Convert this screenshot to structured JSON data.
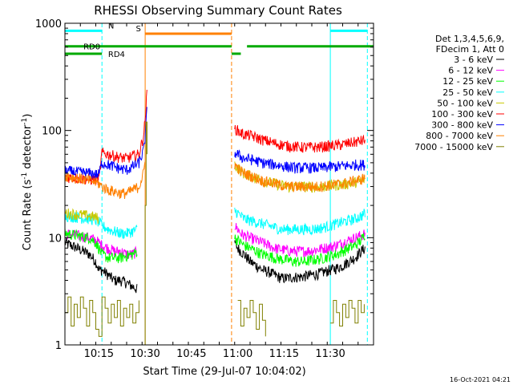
{
  "chart_data": {
    "type": "line",
    "title": "RHESSI Observing Summary Count Rates",
    "xlabel": "Start Time (29-Jul-07 10:04:02)",
    "ylabel_parts": [
      "Count Rate (s",
      "-1",
      " detector",
      "-1",
      ")"
    ],
    "yscale": "log",
    "ylim": [
      1,
      1000
    ],
    "xlim_minutes": [
      0,
      100
    ],
    "x_ticks": [
      {
        "min": 11,
        "label": "10:15"
      },
      {
        "min": 26,
        "label": "10:30"
      },
      {
        "min": 41,
        "label": "10:45"
      },
      {
        "min": 56,
        "label": "11:00"
      },
      {
        "min": 71,
        "label": "11:15"
      },
      {
        "min": 86,
        "label": "11:30"
      }
    ],
    "y_ticks": [
      {
        "value": 1,
        "label": "1"
      },
      {
        "value": 10,
        "label": "10"
      },
      {
        "value": 100,
        "label": "100"
      },
      {
        "value": 1000,
        "label": "1000"
      }
    ],
    "legend_placement": "top-right",
    "legend_header": [
      "Det 1,3,4,5,6,9,",
      "FDecim 1, Att 0"
    ],
    "series": [
      {
        "name": "3 - 6 keV",
        "color": "#000000",
        "segments": [
          {
            "x": [
              0,
              4,
              8,
              10,
              11,
              12,
              14,
              16,
              18,
              20,
              22,
              23.5
            ],
            "y": [
              9,
              8,
              7,
              6,
              5,
              5,
              4.5,
              4,
              4,
              3.8,
              3.5,
              3.3
            ]
          },
          {
            "x": [
              55,
              56,
              57,
              58,
              59,
              60,
              62,
              64,
              66,
              68,
              70,
              72,
              74,
              76,
              78,
              80,
              82,
              84,
              86,
              88,
              90,
              92,
              94,
              96,
              97.3
            ],
            "y": [
              9,
              8,
              7.5,
              7,
              6.5,
              6,
              5.5,
              5,
              4.8,
              4.5,
              4.2,
              4.2,
              4.3,
              4.3,
              4.4,
              4.5,
              4.6,
              4.8,
              5,
              5.2,
              5.5,
              6,
              6.5,
              7.5,
              8
            ]
          }
        ]
      },
      {
        "name": "6 - 12 keV",
        "color": "#ff00ff",
        "segments": [
          {
            "x": [
              0,
              4,
              8,
              10,
              11,
              12,
              14,
              16,
              18,
              20,
              22,
              23.5
            ],
            "y": [
              11,
              10.5,
              10,
              9.5,
              9,
              8.5,
              8,
              7.5,
              7.5,
              7,
              7,
              7.5
            ]
          },
          {
            "x": [
              55,
              56,
              57,
              58,
              60,
              62,
              64,
              66,
              68,
              70,
              72,
              74,
              76,
              78,
              80,
              82,
              84,
              86,
              88,
              90,
              92,
              94,
              96,
              97.3
            ],
            "y": [
              13,
              12,
              11,
              10.5,
              10,
              9.5,
              9,
              8.5,
              8,
              7.8,
              7.6,
              7.5,
              7.5,
              7.5,
              7.6,
              7.8,
              8,
              8.2,
              8.5,
              9,
              9.5,
              10,
              10.5,
              11
            ]
          }
        ]
      },
      {
        "name": "12 - 25 keV",
        "color": "#00ff00",
        "segments": [
          {
            "x": [
              0,
              4,
              8,
              10,
              11,
              12,
              14,
              16,
              18,
              20,
              22,
              23.5
            ],
            "y": [
              11,
              10.5,
              10,
              9,
              8,
              7,
              6.5,
              6.5,
              6.5,
              6.8,
              7,
              7.5
            ]
          },
          {
            "x": [
              55,
              56,
              57,
              58,
              60,
              62,
              64,
              66,
              68,
              70,
              72,
              74,
              76,
              78,
              80,
              82,
              84,
              86,
              88,
              90,
              92,
              94,
              96,
              97.3
            ],
            "y": [
              10,
              9.5,
              9,
              8.5,
              8,
              7.5,
              7,
              6.8,
              6.5,
              6.3,
              6.2,
              6,
              6,
              6,
              6.2,
              6.3,
              6.5,
              6.8,
              7,
              7.5,
              8,
              8.5,
              9.5,
              11
            ]
          }
        ]
      },
      {
        "name": "25 - 50 keV",
        "color": "#00ffff",
        "segments": [
          {
            "x": [
              0,
              4,
              8,
              10,
              11,
              12,
              14,
              16,
              18,
              20,
              22,
              23.5
            ],
            "y": [
              16,
              15.5,
              15,
              14.5,
              14,
              13,
              12,
              11.5,
              11,
              11,
              11.5,
              12
            ]
          },
          {
            "x": [
              55,
              56,
              57,
              58,
              60,
              62,
              64,
              66,
              68,
              70,
              72,
              74,
              76,
              78,
              80,
              82,
              84,
              86,
              88,
              90,
              92,
              94,
              96,
              97.3
            ],
            "y": [
              18,
              17,
              16,
              15,
              14.5,
              14,
              13.5,
              13,
              12.5,
              12,
              12,
              12,
              12,
              12,
              12,
              12.2,
              12.5,
              13,
              13.5,
              14,
              14.5,
              15,
              16,
              17
            ]
          }
        ]
      },
      {
        "name": "50 - 100 keV",
        "color": "#c8c800",
        "segments": [
          {
            "x": [
              0,
              4,
              8,
              10,
              11
            ],
            "y": [
              17,
              16.5,
              16,
              15.5,
              15
            ]
          },
          {
            "x": [
              55,
              56,
              57,
              58,
              60,
              62,
              64,
              66,
              68,
              70,
              72,
              74,
              76,
              78,
              80,
              82,
              84,
              86,
              88,
              90,
              92,
              94,
              96,
              97.3
            ],
            "y": [
              48,
              45,
              42,
              40,
              38,
              36,
              34,
              33,
              32,
              31,
              30,
              30,
              30,
              30,
              30,
              30,
              30,
              30.5,
              31,
              31.5,
              32,
              33,
              34,
              35
            ]
          }
        ]
      },
      {
        "name": "100 - 300 keV",
        "color": "#ff0000",
        "segments": [
          {
            "x": [
              0,
              4,
              8,
              10,
              11,
              12,
              14,
              16,
              18,
              20,
              22,
              24,
              25.5,
              26.2,
              26.6
            ],
            "y": [
              37,
              36,
              35,
              35,
              35,
              62,
              60,
              58,
              56,
              55,
              58,
              60,
              90,
              150,
              230
            ]
          },
          {
            "x": [
              55,
              56,
              57,
              58,
              60,
              62,
              64,
              66,
              68,
              70,
              72,
              74,
              76,
              78,
              80,
              82,
              84,
              86,
              88,
              90,
              92,
              94,
              96,
              97.3
            ],
            "y": [
              105,
              100,
              95,
              92,
              90,
              86,
              82,
              79,
              76,
              74,
              72,
              71,
              70,
              70,
              70,
              70,
              71,
              72,
              73,
              74,
              76,
              78,
              80,
              82
            ]
          }
        ]
      },
      {
        "name": "300 - 800 keV",
        "color": "#0000ff",
        "segments": [
          {
            "x": [
              0,
              4,
              8,
              10,
              11,
              12,
              14,
              16,
              18,
              20,
              22,
              24,
              25.5,
              26.2,
              26.6
            ],
            "y": [
              42,
              41,
              40,
              39,
              39,
              50,
              48,
              46,
              44,
              43,
              46,
              50,
              65,
              100,
              160
            ]
          },
          {
            "x": [
              55,
              56,
              57,
              58,
              60,
              62,
              64,
              66,
              68,
              70,
              72,
              74,
              76,
              78,
              80,
              82,
              84,
              86,
              88,
              90,
              92,
              94,
              96,
              97.3
            ],
            "y": [
              62,
              60,
              57,
              55,
              54,
              52,
              50,
              49,
              48,
              47,
              46,
              45,
              45,
              45,
              45,
              45,
              45,
              46,
              46,
              47,
              47,
              48,
              48,
              48
            ]
          }
        ]
      },
      {
        "name": "800 - 7000 keV",
        "color": "#ff8000",
        "segments": [
          {
            "x": [
              0,
              4,
              8,
              10,
              11,
              12,
              14,
              16,
              18,
              20,
              22,
              24,
              25.5,
              26.2
            ],
            "y": [
              38,
              36,
              34,
              33,
              32,
              30,
              28,
              27,
              26,
              26,
              28,
              30,
              40,
              60
            ]
          },
          {
            "x": [
              55,
              56,
              57,
              58,
              60,
              62,
              64,
              66,
              68,
              70,
              72,
              74,
              76,
              78,
              80,
              82,
              84,
              86,
              88,
              90,
              92,
              94,
              96,
              97.3
            ],
            "y": [
              48,
              45,
              42,
              40,
              38,
              36,
              34,
              33,
              32,
              31,
              30,
              30,
              30,
              30,
              30,
              30,
              30.5,
              31,
              31.5,
              32,
              33,
              34,
              35,
              37
            ]
          }
        ]
      },
      {
        "name": "7000 - 15000 keV",
        "color": "#808000",
        "segments": [
          {
            "x": [
              0,
              1,
              2,
              3,
              4,
              5,
              6,
              7,
              8,
              9,
              10,
              11,
              12,
              13,
              14,
              15,
              16,
              17,
              18,
              19,
              20,
              21,
              22,
              23,
              24
            ],
            "y": [
              2,
              2.8,
              1.5,
              2.4,
              1.8,
              2.8,
              2.2,
              1.5,
              2.6,
              2,
              1.4,
              1.2,
              2.8,
              2.2,
              1.6,
              2.4,
              1.8,
              2.6,
              1.5,
              2.2,
              1.8,
              2.4,
              1.6,
              2,
              2.6
            ]
          },
          {
            "x": [
              25.5,
              26,
              26.3,
              26.6
            ],
            "y": [
              1,
              20,
              120,
              60
            ]
          },
          {
            "x": [
              56,
              57,
              58,
              59,
              60,
              61,
              62,
              63,
              64,
              65
            ],
            "y": [
              2.6,
              1.5,
              2.2,
              1.8,
              2.6,
              2,
              1.4,
              2.4,
              1.7,
              1.2
            ]
          },
          {
            "x": [
              86,
              87,
              88,
              89,
              90,
              91,
              92,
              93,
              94,
              95,
              96,
              97
            ],
            "y": [
              1.6,
              2.6,
              2,
              1.5,
              2.4,
              1.8,
              2.6,
              2.2,
              1.6,
              2.6,
              2,
              2.4
            ]
          }
        ]
      }
    ],
    "vlines": [
      {
        "x": 0,
        "color": "#00ffff",
        "style": "solid"
      },
      {
        "x": 12,
        "color": "#00ffff",
        "style": "dashed"
      },
      {
        "x": 26,
        "color": "#ff8000",
        "style": "solid"
      },
      {
        "x": 54,
        "color": "#ff8000",
        "style": "dashed"
      },
      {
        "x": 86,
        "color": "#00ffff",
        "style": "solid"
      },
      {
        "x": 98,
        "color": "#00ffff",
        "style": "dashed"
      }
    ],
    "state_bars": [
      {
        "label": "N",
        "color": "#00ffff",
        "y": 850,
        "segments": [
          [
            0,
            12
          ],
          [
            86,
            98
          ]
        ],
        "label_x": 14
      },
      {
        "label": "S",
        "color": "#ff8000",
        "y": 800,
        "segments": [
          [
            26,
            54
          ]
        ],
        "label_x": 23
      },
      {
        "label": "RD0",
        "color": "#00aa00",
        "y": 610,
        "segments": [
          [
            0,
            54
          ],
          [
            59,
            100
          ]
        ],
        "label_x": 6
      },
      {
        "label": "RD4",
        "color": "#00aa00",
        "y": 520,
        "segments": [
          [
            0,
            12
          ],
          [
            54,
            57
          ]
        ],
        "label_x": 14
      }
    ],
    "footer": "16-Oct-2021 04:21"
  }
}
